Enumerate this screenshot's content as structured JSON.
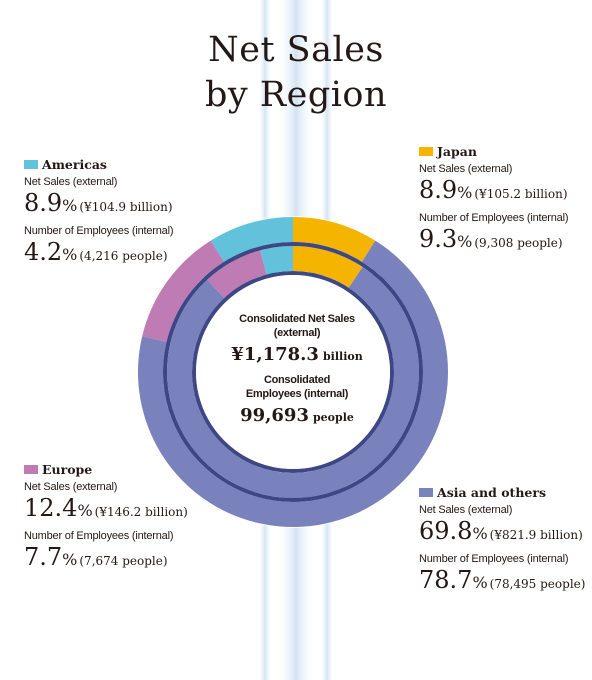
{
  "title": {
    "line1": "Net Sales",
    "line2": "by Region"
  },
  "center": {
    "sales_label": "Consolidated Net Sales (external)",
    "sales_value": "¥1,178.3",
    "sales_unit": "billion",
    "employees_label": "Consolidated Employees (internal)",
    "employees_value": "99,693",
    "employees_unit": "people"
  },
  "regions": {
    "americas": {
      "name": "Americas",
      "sales_label": "Net Sales (external)",
      "sales_pct": "8.9",
      "sales_detail": "(¥104.9 billion)",
      "emp_label": "Number of Employees (internal)",
      "emp_pct": "4.2",
      "emp_detail": "(4,216 people)"
    },
    "japan": {
      "name": "Japan",
      "sales_label": "Net Sales (external)",
      "sales_pct": "8.9",
      "sales_detail": "(¥105.2 billion)",
      "emp_label": "Number of Employees (internal)",
      "emp_pct": "9.3",
      "emp_detail": "(9,308 people)"
    },
    "europe": {
      "name": "Europe",
      "sales_label": "Net Sales (external)",
      "sales_pct": "12.4",
      "sales_detail": "(¥146.2 billion)",
      "emp_label": "Number of Employees (internal)",
      "emp_pct": "7.7",
      "emp_detail": "(7,674 people)"
    },
    "asia": {
      "name": "Asia and others",
      "sales_label": "Net Sales (external)",
      "sales_pct": "69.8",
      "sales_detail": "(¥821.9 billion)",
      "emp_label": "Number of Employees (internal)",
      "emp_pct": "78.7",
      "emp_detail": "(78,495 people)"
    }
  },
  "pct_sign": "%",
  "colors": {
    "japan": "#f5b400",
    "asia": "#7a82bd",
    "europe": "#be7bb4",
    "americas": "#62c2dc",
    "ring_gap": "#3e4785"
  },
  "chart_data": {
    "type": "pie",
    "variant": "concentric-donut",
    "categories": [
      "Japan",
      "Asia and others",
      "Europe",
      "Americas"
    ],
    "series": [
      {
        "name": "Net Sales (external)",
        "values": [
          8.9,
          69.8,
          12.4,
          8.9
        ]
      },
      {
        "name": "Number of Employees (internal)",
        "values": [
          9.3,
          78.7,
          7.7,
          4.2
        ]
      }
    ],
    "title": "Net Sales by Region"
  }
}
